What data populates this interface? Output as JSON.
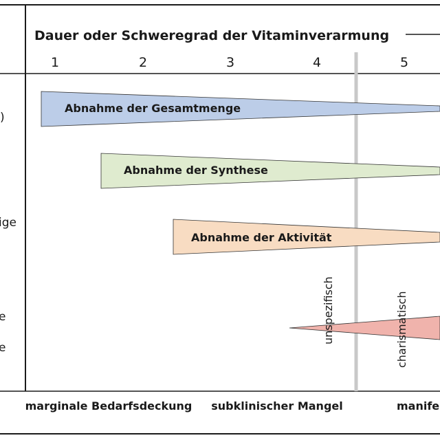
{
  "header": {
    "title": "Dauer oder Schweregrad der Vitaminverarmung",
    "stages": [
      "1",
      "2",
      "3",
      "4",
      "5"
    ]
  },
  "left_fragments": [
    ")",
    "ige",
    "e",
    "e"
  ],
  "bars": [
    {
      "label": "Abnahme der Gesamtmenge",
      "color": "#bccde8"
    },
    {
      "label": "Abnahme der Synthese",
      "color": "#dfebcf"
    },
    {
      "label": "Abnahme der Aktivität",
      "color": "#f8dcc2"
    },
    {
      "label": "",
      "color": "#f0b3ac"
    }
  ],
  "vertical_labels": {
    "left": "unspezifisch",
    "right": "charismatisch"
  },
  "footer": {
    "categories": [
      "marginale Bedarfsdeckung",
      "subklinischer Mangel",
      "manifes"
    ]
  },
  "colors": {
    "divider": "#c8c8c8",
    "line": "#1a1a1a",
    "background": "#ffffff"
  }
}
